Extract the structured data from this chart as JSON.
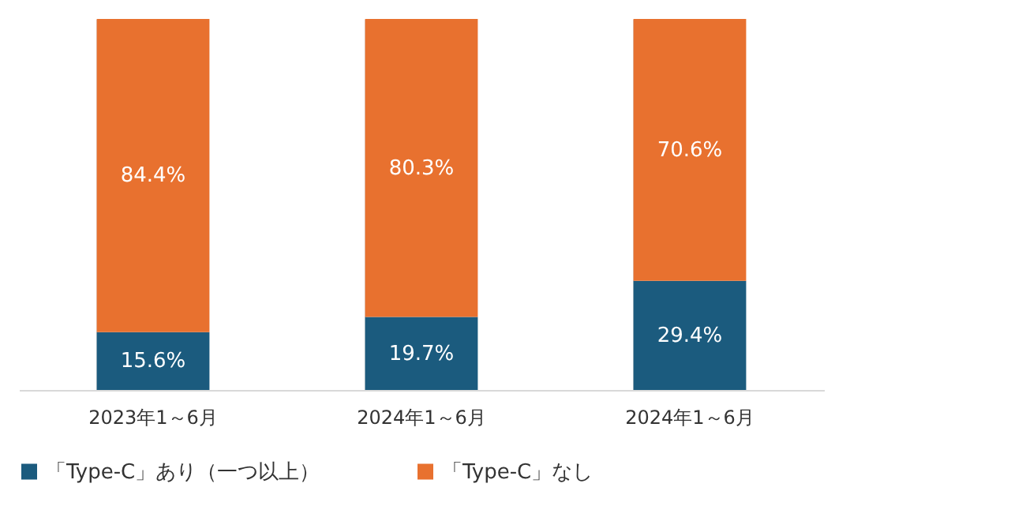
{
  "chart_data": {
    "type": "bar",
    "stacked": true,
    "categories": [
      "2023年1～6月",
      "2024年1～6月",
      "2024年1～6月"
    ],
    "series": [
      {
        "name": "「Type-C」あり（一つ以上）",
        "color": "#1b5b7e",
        "values": [
          15.6,
          19.7,
          29.4
        ],
        "value_labels": [
          "15.6%",
          "19.7%",
          "29.4%"
        ]
      },
      {
        "name": "「Type-C」なし",
        "color": "#e8712f",
        "values": [
          84.4,
          80.3,
          70.6
        ],
        "value_labels": [
          "84.4%",
          "80.3%",
          "70.6%"
        ]
      }
    ],
    "tick_labels": "x",
    "grid": "x",
    "legend": "bottom"
  }
}
